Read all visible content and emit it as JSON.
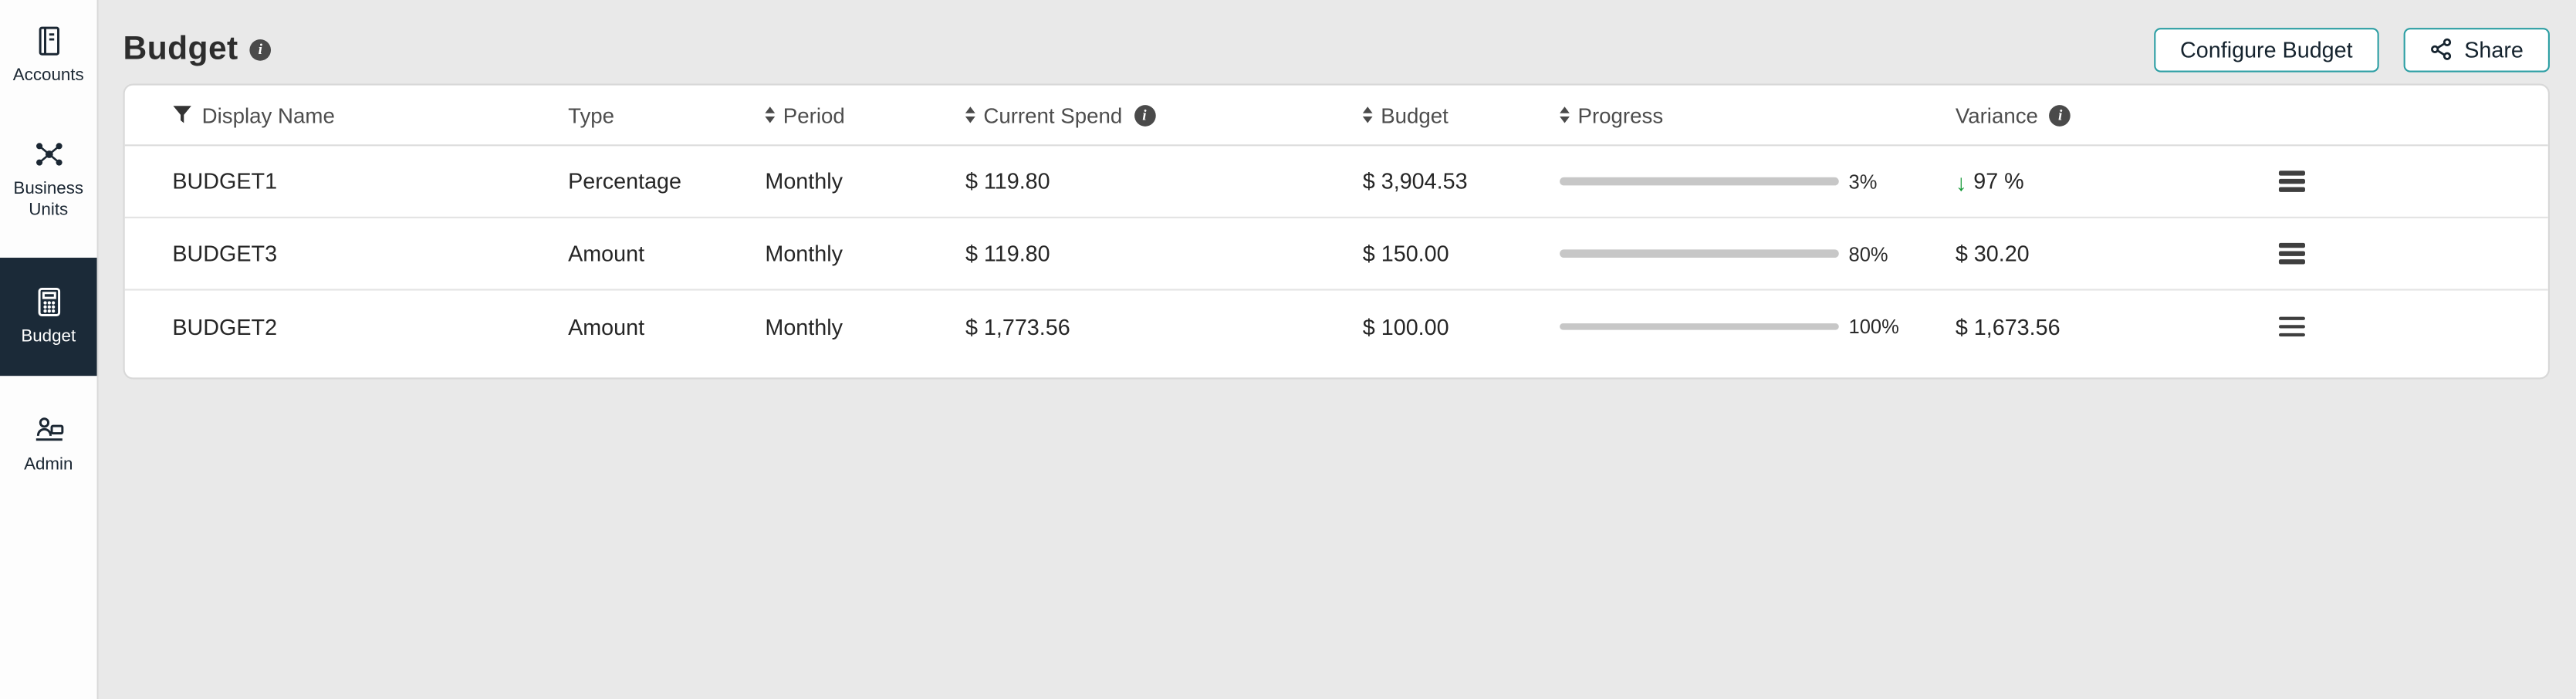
{
  "sidebar": {
    "items": [
      {
        "label": "Accounts",
        "active": false
      },
      {
        "label": "Business Units",
        "active": false
      },
      {
        "label": "Budget",
        "active": true
      },
      {
        "label": "Admin",
        "active": false
      }
    ]
  },
  "header": {
    "title": "Budget",
    "configure_button": "Configure Budget",
    "share_button": "Share"
  },
  "table": {
    "columns": [
      {
        "label": "Display Name",
        "filter": true
      },
      {
        "label": "Type"
      },
      {
        "label": "Period",
        "sortable": true
      },
      {
        "label": "Current Spend",
        "sortable": true,
        "info": true
      },
      {
        "label": "Budget",
        "sortable": true
      },
      {
        "label": "Progress",
        "sortable": true
      },
      {
        "label": "Variance",
        "info": true
      }
    ],
    "rows": [
      {
        "display_name": "BUDGET1",
        "type": "Percentage",
        "period": "Monthly",
        "current_spend": "$ 119.80",
        "budget": "$ 3,904.53",
        "progress_pct": 3,
        "progress_label": "3%",
        "progress_color": "#3fb0a8",
        "variance": "97 %",
        "variance_direction": "down"
      },
      {
        "display_name": "BUDGET3",
        "type": "Amount",
        "period": "Monthly",
        "current_spend": "$ 119.80",
        "budget": "$ 150.00",
        "progress_pct": 80,
        "progress_label": "80%",
        "progress_color": "#f8c51c",
        "variance": "$ 30.20",
        "variance_direction": "none"
      },
      {
        "display_name": "BUDGET2",
        "type": "Amount",
        "period": "Monthly",
        "current_spend": "$ 1,773.56",
        "budget": "$ 100.00",
        "progress_pct": 100,
        "progress_label": "100%",
        "progress_color": "#f4655f",
        "variance": "$ 1,673.56",
        "variance_direction": "none"
      }
    ]
  },
  "colors": {
    "active_nav_bg": "#1b2a38",
    "button_border": "#2d9fa4",
    "variance_green": "#189a3a",
    "progress_teal": "#3fb0a8",
    "progress_yellow": "#f8c51c",
    "progress_red": "#f4655f"
  }
}
